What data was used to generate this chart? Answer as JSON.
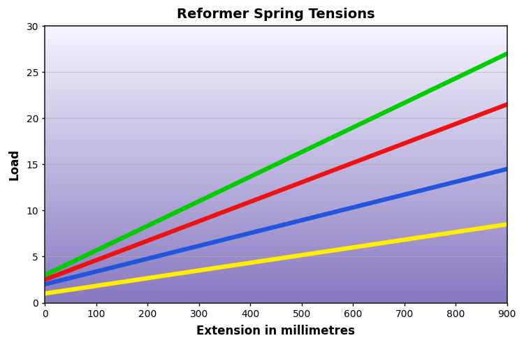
{
  "title": "Reformer Spring Tensions",
  "xlabel": "Extension in millimetres",
  "ylabel": "Load",
  "xlim": [
    0,
    900
  ],
  "ylim": [
    0,
    30
  ],
  "xticks": [
    0,
    100,
    200,
    300,
    400,
    500,
    600,
    700,
    800,
    900
  ],
  "yticks": [
    0,
    5,
    10,
    15,
    20,
    25,
    30
  ],
  "lines": [
    {
      "color": "#00cc00",
      "x0": 0,
      "y0": 3.0,
      "x1": 900,
      "y1": 27.0,
      "linewidth": 4.5
    },
    {
      "color": "#ee1111",
      "x0": 0,
      "y0": 2.5,
      "x1": 900,
      "y1": 21.5,
      "linewidth": 4.5
    },
    {
      "color": "#2255dd",
      "x0": 0,
      "y0": 2.0,
      "x1": 900,
      "y1": 14.5,
      "linewidth": 4.5
    },
    {
      "color": "#ffee00",
      "x0": 0,
      "y0": 1.0,
      "x1": 900,
      "y1": 8.5,
      "linewidth": 4.5
    }
  ],
  "bg_top_color": "#f5f5ff",
  "bg_bottom_color": "#8878c0",
  "grid_color": "#aaaaaa",
  "grid_alpha": 0.6,
  "title_fontsize": 14,
  "label_fontsize": 12,
  "tick_fontsize": 10,
  "figsize": [
    7.5,
    4.94
  ],
  "dpi": 100
}
